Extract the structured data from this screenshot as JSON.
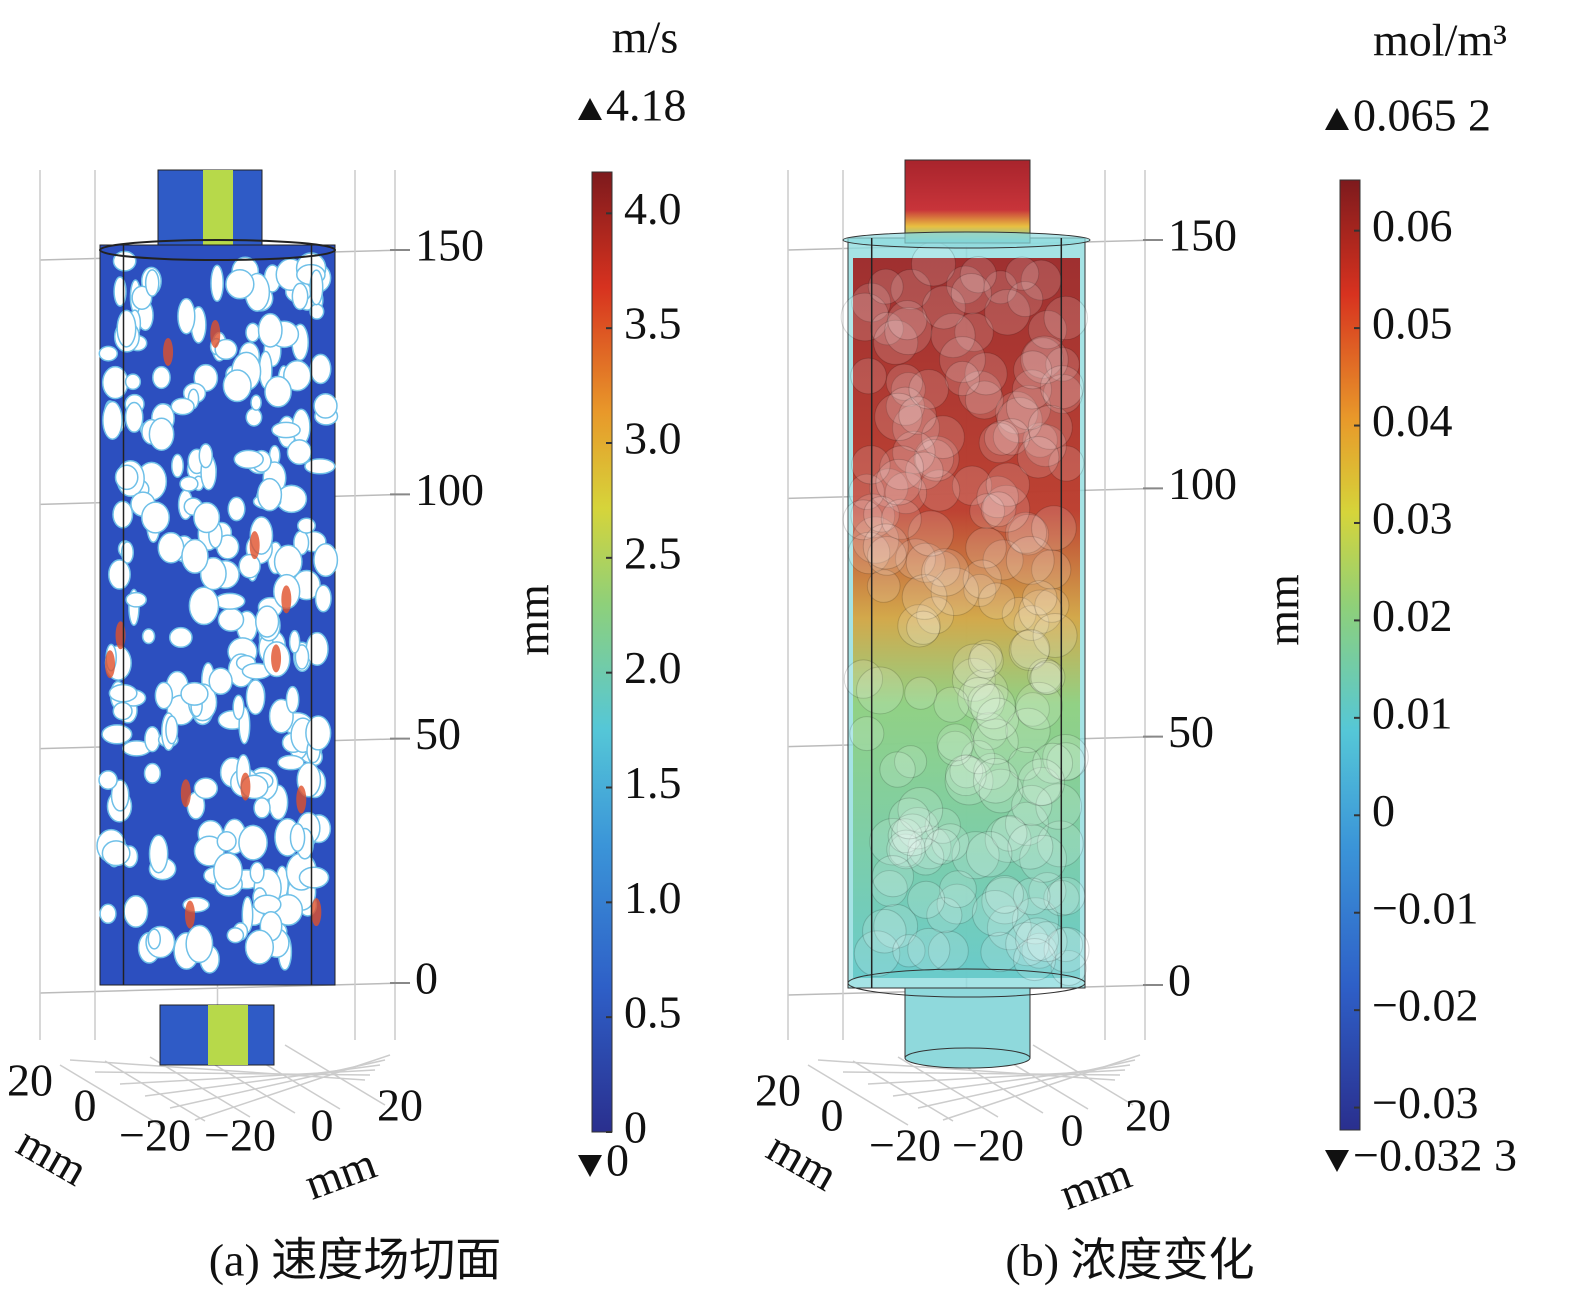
{
  "panels": [
    {
      "caption": "(a) 速度场切面",
      "z_axis": {
        "label": "mm",
        "ticks": [
          0,
          50,
          100,
          150
        ]
      },
      "x_axis": {
        "label": "mm",
        "ticks": [
          "20",
          "0",
          "−20"
        ]
      },
      "y_axis": {
        "label": "mm",
        "ticks": [
          "−20",
          "0",
          "20"
        ]
      },
      "colorbar": {
        "unit": "m/s",
        "max": {
          "value": 4.18,
          "label": "4.18"
        },
        "min": 0,
        "ticks": [
          0,
          0.5,
          {
            "value": 1,
            "label": "1.0"
          },
          1.5,
          {
            "value": 2,
            "label": "2.0"
          },
          2.5,
          {
            "value": 3,
            "label": "3.0"
          },
          3.5,
          {
            "value": 4,
            "label": "4.0"
          }
        ]
      }
    },
    {
      "caption": "(b) 浓度变化",
      "z_axis": {
        "label": "mm",
        "ticks": [
          0,
          50,
          100,
          150
        ]
      },
      "x_axis": {
        "label": "mm",
        "ticks": [
          "20",
          "0",
          "−20"
        ]
      },
      "y_axis": {
        "label": "mm",
        "ticks": [
          "−20",
          "0",
          "20"
        ]
      },
      "colorbar": {
        "unit": "mol/m³",
        "max": {
          "value": 0.0652,
          "label": "0.065 2"
        },
        "min": {
          "value": -0.0323,
          "label": "−0.032 3"
        },
        "ticks": [
          {
            "value": -0.03,
            "label": "−0.03"
          },
          {
            "value": -0.02,
            "label": "−0.02"
          },
          {
            "value": -0.01,
            "label": "−0.01"
          },
          0,
          0.01,
          0.02,
          0.03,
          0.04,
          0.05,
          0.06
        ]
      }
    }
  ]
}
